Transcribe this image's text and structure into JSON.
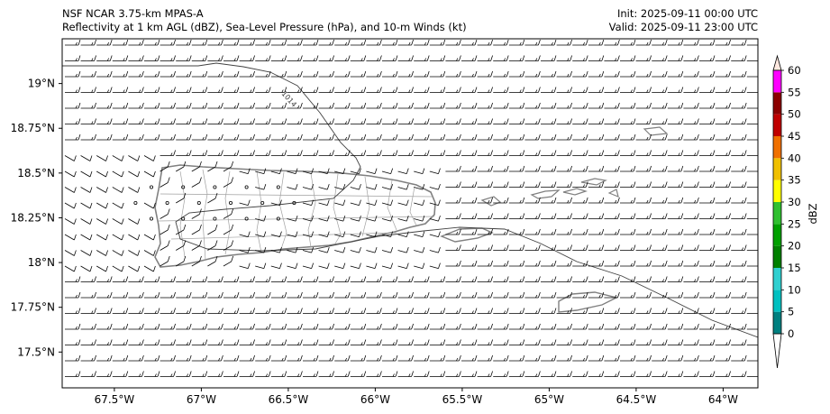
{
  "header": {
    "model": "NSF NCAR 3.75-km MPAS-A",
    "fields": "Reflectivity at 1 km AGL (dBZ), Sea-Level Pressure (hPa), and 10-m Winds (kt)",
    "init": "Init: 2025-09-11 00:00 UTC",
    "valid": "Valid: 2025-09-11 23:00 UTC"
  },
  "map": {
    "lon_range": [
      -67.8,
      -63.8
    ],
    "lat_range": [
      17.3,
      19.25
    ],
    "lon_ticks": [
      {
        "value": -67.5,
        "label": "67.5°W"
      },
      {
        "value": -67.0,
        "label": "67°W"
      },
      {
        "value": -66.5,
        "label": "66.5°W"
      },
      {
        "value": -66.0,
        "label": "66°W"
      },
      {
        "value": -65.5,
        "label": "65.5°W"
      },
      {
        "value": -65.0,
        "label": "65°W"
      },
      {
        "value": -64.5,
        "label": "64.5°W"
      },
      {
        "value": -64.0,
        "label": "64°W"
      }
    ],
    "lat_ticks": [
      {
        "value": 19.0,
        "label": "19°N"
      },
      {
        "value": 18.75,
        "label": "18.75°N"
      },
      {
        "value": 18.5,
        "label": "18.5°N"
      },
      {
        "value": 18.25,
        "label": "18.25°N"
      },
      {
        "value": 18.0,
        "label": "18°N"
      },
      {
        "value": 17.75,
        "label": "17.75°N"
      },
      {
        "value": 17.5,
        "label": "17.5°N"
      }
    ],
    "isobar_label": "1014",
    "land_outline_color": "#808080",
    "wind_barb_color": "#000000"
  },
  "colorbar": {
    "label": "dBZ",
    "ticks": [
      "0",
      "5",
      "10",
      "15",
      "20",
      "25",
      "30",
      "35",
      "40",
      "45",
      "50",
      "55",
      "60"
    ],
    "colors": [
      "#008080",
      "#00c0c0",
      "#30d0d0",
      "#008000",
      "#00a000",
      "#30c030",
      "#ffff00",
      "#f0c000",
      "#f07000",
      "#c00000",
      "#8b0000",
      "#ff00ff"
    ]
  }
}
